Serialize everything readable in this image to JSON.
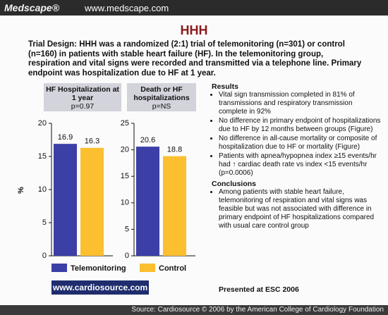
{
  "header": {
    "brand": "Medscape®",
    "url": "www.medscape.com"
  },
  "title": "HHH",
  "description": "Trial Design: HHH was a randomized (2:1) trial of telemonitoring (n=301) or control (n=160) in patients with stable heart failure (HF). In the telemonitoring group, respiration and vital signs were recorded and transmitted via a telephone line. Primary endpoint was hospitalization due to HF at 1 year.",
  "chart_data": [
    {
      "type": "bar",
      "title": "HF Hospitalization at 1 year",
      "subtitle": "p=0.97",
      "ylabel": "%",
      "series": [
        {
          "name": "Telemonitoring",
          "color": "#3c3fa6",
          "values": [
            16.9
          ]
        },
        {
          "name": "Control",
          "color": "#fbbf2f",
          "values": [
            16.3
          ]
        }
      ],
      "ylim": [
        0,
        20
      ],
      "yticks": [
        0,
        5,
        10,
        15,
        20
      ]
    },
    {
      "type": "bar",
      "title": "Death or HF hospitalizations",
      "subtitle": "p=NS",
      "series": [
        {
          "color": "#3c3fa6",
          "values": [
            20.6
          ]
        },
        {
          "color": "#fbbf2f",
          "values": [
            18.8
          ]
        }
      ],
      "ylim": [
        0,
        25
      ],
      "yticks": [
        0,
        5,
        10,
        15,
        20,
        25
      ]
    }
  ],
  "results": {
    "heading": "Results",
    "items": [
      "Vital sign transmission completed in 81% of transmissions and respiratory transmission complete in 92%",
      "No difference in primary endpoint of hospitalizations due to HF by 12 months between groups (Figure)",
      "No difference in all-cause mortality or composite of hospitalization due to HF or mortality (Figure)",
      "Patients with apnea/hypopnea index ≥15 events/hr had ↑ cardiac death rate vs index <15 events/hr (p=0.0006)"
    ]
  },
  "conclusions": {
    "heading": "Conclusions",
    "items": [
      "Among patients with stable heart failure, telemonitoring of respiration and vital signs was feasible but was not associated with difference in primary endpoint of HF hospitalizations compared with usual care control group"
    ]
  },
  "logo": "www.cardiosource.com",
  "presented": "Presented at ESC 2006",
  "footer": "Source: Cardiosource © 2006 by the American College of Cardiology Foundation"
}
